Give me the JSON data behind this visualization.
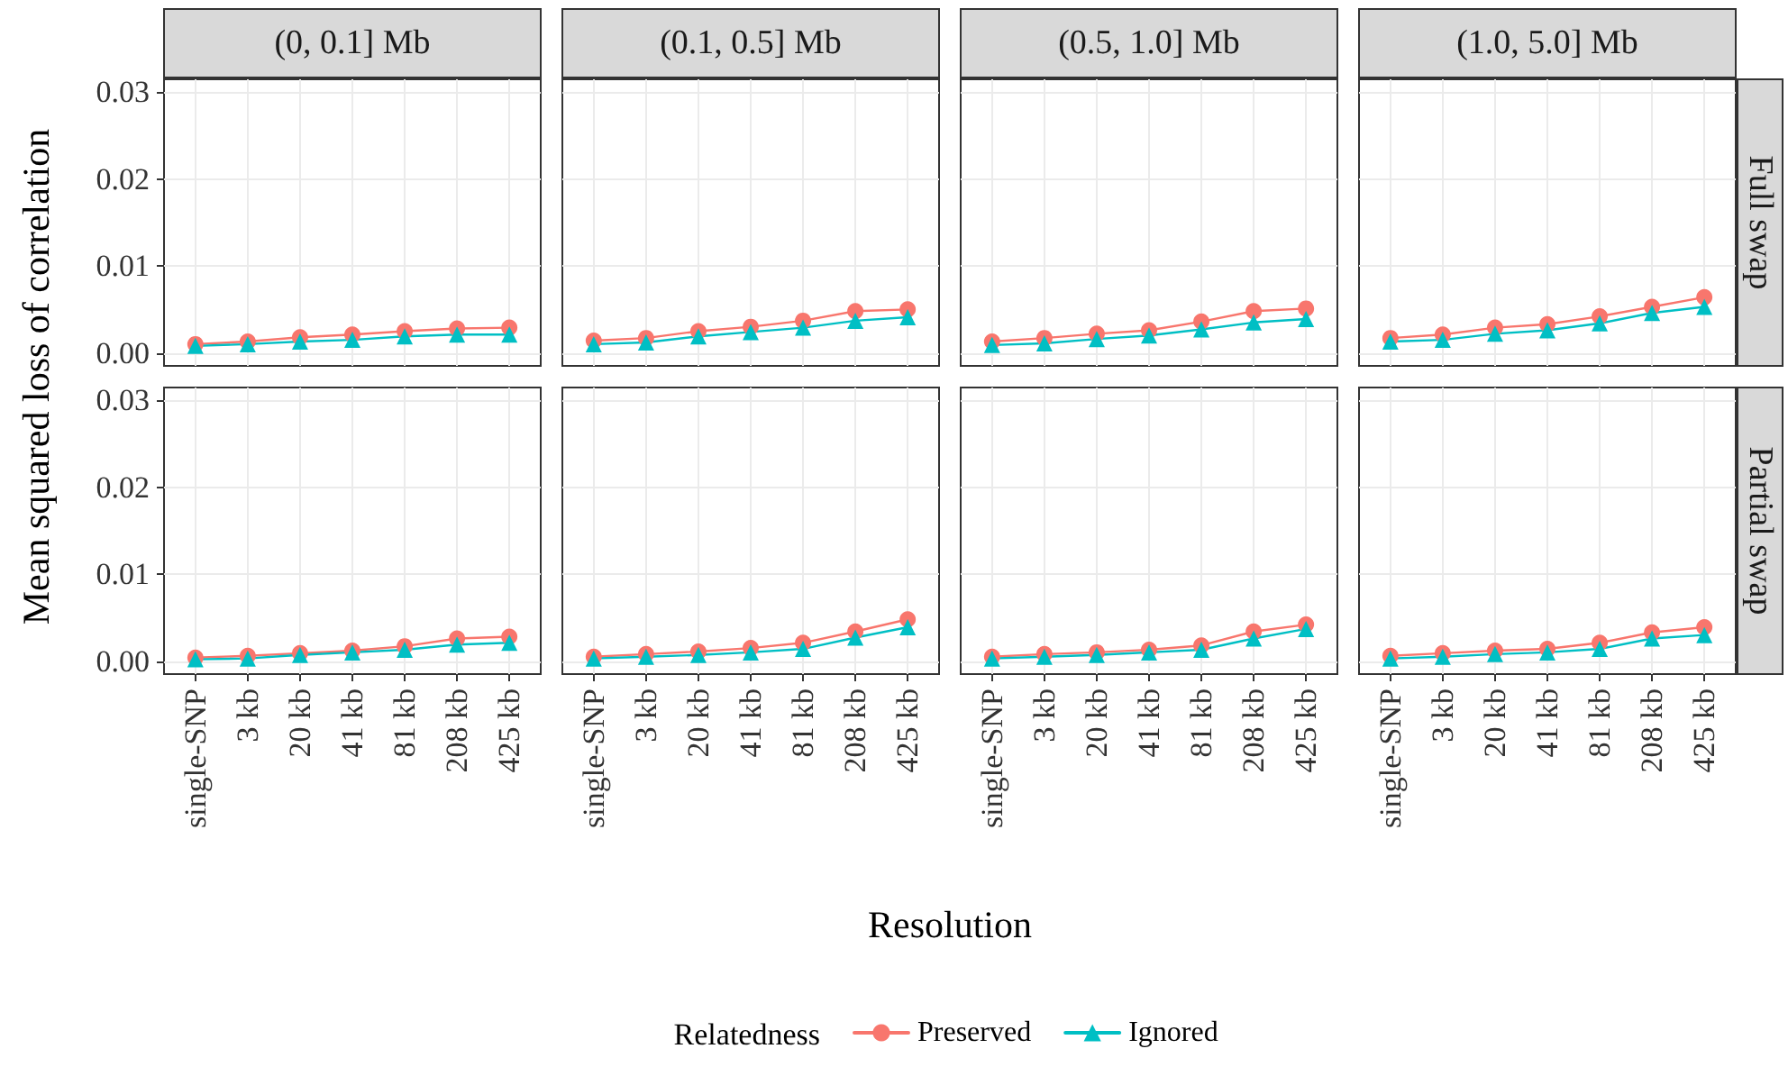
{
  "chart_data": [
    {
      "type": "line",
      "title": "(0, 0.1] Mb",
      "ylabel": "Mean squared loss of correlation",
      "legend": "bottom",
      "legend_title": "Relatedness",
      "grid": true,
      "tick_labels": "y",
      "categories": [
        "single-SNP",
        "3 kb",
        "20 kb",
        "41 kb",
        "81 kb",
        "208 kb",
        "425 kb"
      ],
      "ylim": [
        -0.0015,
        0.0315
      ],
      "yticks": [
        {
          "value": 0,
          "label": "0.00"
        },
        {
          "value": 0.01,
          "label": "0.01"
        },
        {
          "value": 0.02,
          "label": "0.02"
        },
        {
          "value": 0.03,
          "label": "0.03"
        }
      ],
      "series": [
        {
          "name": "Preserved",
          "color": "#f8766d",
          "marker": "circle",
          "values": [
            0.001,
            0.0013,
            0.0018,
            0.0021,
            0.0025,
            0.0028,
            0.0029
          ]
        },
        {
          "name": "Ignored",
          "color": "#00bfc4",
          "marker": "triangle",
          "values": [
            0.0008,
            0.001,
            0.0013,
            0.0015,
            0.0019,
            0.0021,
            0.0021
          ]
        }
      ]
    },
    {
      "type": "line",
      "title": "(0.1, 0.5] Mb",
      "grid": true,
      "tick_labels": false,
      "categories": [
        "single-SNP",
        "3 kb",
        "20 kb",
        "41 kb",
        "81 kb",
        "208 kb",
        "425 kb"
      ],
      "ylim": [
        -0.0015,
        0.0315
      ],
      "yticks": [
        {
          "value": 0,
          "label": "0.00"
        },
        {
          "value": 0.01,
          "label": "0.01"
        },
        {
          "value": 0.02,
          "label": "0.02"
        },
        {
          "value": 0.03,
          "label": "0.03"
        }
      ],
      "series": [
        {
          "name": "Preserved",
          "color": "#f8766d",
          "marker": "circle",
          "values": [
            0.0014,
            0.0017,
            0.0025,
            0.003,
            0.0037,
            0.0048,
            0.005
          ]
        },
        {
          "name": "Ignored",
          "color": "#00bfc4",
          "marker": "triangle",
          "values": [
            0.001,
            0.0012,
            0.0019,
            0.0024,
            0.0029,
            0.0037,
            0.0041
          ]
        }
      ]
    },
    {
      "type": "line",
      "title": "(0.5, 1.0] Mb",
      "grid": true,
      "tick_labels": false,
      "categories": [
        "single-SNP",
        "3 kb",
        "20 kb",
        "41 kb",
        "81 kb",
        "208 kb",
        "425 kb"
      ],
      "ylim": [
        -0.0015,
        0.0315
      ],
      "yticks": [
        {
          "value": 0,
          "label": "0.00"
        },
        {
          "value": 0.01,
          "label": "0.01"
        },
        {
          "value": 0.02,
          "label": "0.02"
        },
        {
          "value": 0.03,
          "label": "0.03"
        }
      ],
      "series": [
        {
          "name": "Preserved",
          "color": "#f8766d",
          "marker": "circle",
          "values": [
            0.0013,
            0.0017,
            0.0022,
            0.0026,
            0.0036,
            0.0048,
            0.0051
          ]
        },
        {
          "name": "Ignored",
          "color": "#00bfc4",
          "marker": "triangle",
          "values": [
            0.0009,
            0.0011,
            0.0016,
            0.002,
            0.0027,
            0.0035,
            0.0039
          ]
        }
      ]
    },
    {
      "type": "line",
      "title": "(1.0, 5.0] Mb",
      "annotations": [
        "Full swap"
      ],
      "grid": true,
      "tick_labels": false,
      "categories": [
        "single-SNP",
        "3 kb",
        "20 kb",
        "41 kb",
        "81 kb",
        "208 kb",
        "425 kb"
      ],
      "ylim": [
        -0.0015,
        0.0315
      ],
      "yticks": [
        {
          "value": 0,
          "label": "0.00"
        },
        {
          "value": 0.01,
          "label": "0.01"
        },
        {
          "value": 0.02,
          "label": "0.02"
        },
        {
          "value": 0.03,
          "label": "0.03"
        }
      ],
      "series": [
        {
          "name": "Preserved",
          "color": "#f8766d",
          "marker": "circle",
          "values": [
            0.0017,
            0.0021,
            0.0029,
            0.0033,
            0.0042,
            0.0053,
            0.0064
          ]
        },
        {
          "name": "Ignored",
          "color": "#00bfc4",
          "marker": "triangle",
          "values": [
            0.0013,
            0.0015,
            0.0022,
            0.0026,
            0.0034,
            0.0046,
            0.0053
          ]
        }
      ]
    },
    {
      "type": "line",
      "grid": true,
      "categories": [
        "single-SNP",
        "3 kb",
        "20 kb",
        "41 kb",
        "81 kb",
        "208 kb",
        "425 kb"
      ],
      "ylim": [
        -0.0015,
        0.0315
      ],
      "yticks": [
        {
          "value": 0,
          "label": "0.00"
        },
        {
          "value": 0.01,
          "label": "0.01"
        },
        {
          "value": 0.02,
          "label": "0.02"
        },
        {
          "value": 0.03,
          "label": "0.03"
        }
      ],
      "series": [
        {
          "name": "Preserved",
          "color": "#f8766d",
          "marker": "circle",
          "values": [
            0.0004,
            0.0006,
            0.0009,
            0.0012,
            0.0017,
            0.0026,
            0.0028
          ]
        },
        {
          "name": "Ignored",
          "color": "#00bfc4",
          "marker": "triangle",
          "values": [
            0.0002,
            0.0003,
            0.0007,
            0.001,
            0.0013,
            0.0019,
            0.0021
          ]
        }
      ]
    },
    {
      "type": "line",
      "xlabel": "Resolution",
      "grid": true,
      "tick_labels": "x",
      "categories": [
        "single-SNP",
        "3 kb",
        "20 kb",
        "41 kb",
        "81 kb",
        "208 kb",
        "425 kb"
      ],
      "ylim": [
        -0.0015,
        0.0315
      ],
      "yticks": [
        {
          "value": 0,
          "label": "0.00"
        },
        {
          "value": 0.01,
          "label": "0.01"
        },
        {
          "value": 0.02,
          "label": "0.02"
        },
        {
          "value": 0.03,
          "label": "0.03"
        }
      ],
      "series": [
        {
          "name": "Preserved",
          "color": "#f8766d",
          "marker": "circle",
          "values": [
            0.0005,
            0.0008,
            0.0011,
            0.0015,
            0.0021,
            0.0034,
            0.0048
          ]
        },
        {
          "name": "Ignored",
          "color": "#00bfc4",
          "marker": "triangle",
          "values": [
            0.0003,
            0.0005,
            0.0007,
            0.001,
            0.0014,
            0.0027,
            0.0039
          ]
        }
      ]
    },
    {
      "type": "line",
      "grid": true,
      "tick_labels": "x",
      "categories": [
        "single-SNP",
        "3 kb",
        "20 kb",
        "41 kb",
        "81 kb",
        "208 kb",
        "425 kb"
      ],
      "ylim": [
        -0.0015,
        0.0315
      ],
      "yticks": [
        {
          "value": 0,
          "label": "0.00"
        },
        {
          "value": 0.01,
          "label": "0.01"
        },
        {
          "value": 0.02,
          "label": "0.02"
        },
        {
          "value": 0.03,
          "label": "0.03"
        }
      ],
      "series": [
        {
          "name": "Preserved",
          "color": "#f8766d",
          "marker": "circle",
          "values": [
            0.0005,
            0.0008,
            0.001,
            0.0013,
            0.0018,
            0.0034,
            0.0042
          ]
        },
        {
          "name": "Ignored",
          "color": "#00bfc4",
          "marker": "triangle",
          "values": [
            0.0003,
            0.0005,
            0.0007,
            0.001,
            0.0013,
            0.0026,
            0.0037
          ]
        }
      ]
    },
    {
      "type": "line",
      "annotations": [
        "Partial swap"
      ],
      "grid": true,
      "tick_labels": "x",
      "categories": [
        "single-SNP",
        "3 kb",
        "20 kb",
        "41 kb",
        "81 kb",
        "208 kb",
        "425 kb"
      ],
      "ylim": [
        -0.0015,
        0.0315
      ],
      "yticks": [
        {
          "value": 0,
          "label": "0.00"
        },
        {
          "value": 0.01,
          "label": "0.01"
        },
        {
          "value": 0.02,
          "label": "0.02"
        },
        {
          "value": 0.03,
          "label": "0.03"
        }
      ],
      "series": [
        {
          "name": "Preserved",
          "color": "#f8766d",
          "marker": "circle",
          "values": [
            0.0006,
            0.0009,
            0.0012,
            0.0014,
            0.0021,
            0.0033,
            0.0039
          ]
        },
        {
          "name": "Ignored",
          "color": "#00bfc4",
          "marker": "triangle",
          "values": [
            0.0003,
            0.0005,
            0.0008,
            0.001,
            0.0014,
            0.0026,
            0.003
          ]
        }
      ]
    }
  ]
}
